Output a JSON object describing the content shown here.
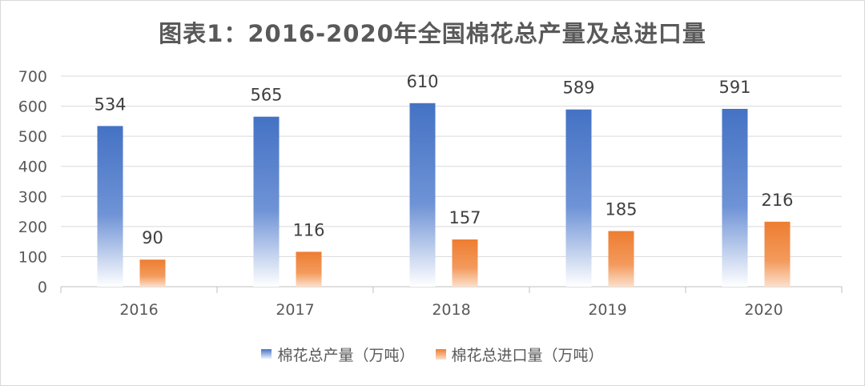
{
  "chart_data": {
    "type": "bar",
    "title": "图表1：2016-2020年全国棉花总产量及总进口量",
    "categories": [
      "2016",
      "2017",
      "2018",
      "2019",
      "2020"
    ],
    "series": [
      {
        "name": "棉花总产量（万吨）",
        "values": [
          534,
          565,
          610,
          589,
          591
        ],
        "color": "#4472c4"
      },
      {
        "name": "棉花总进口量（万吨）",
        "values": [
          90,
          116,
          157,
          185,
          216
        ],
        "color": "#ed7d31"
      }
    ],
    "y_ticks": [
      "0",
      "100",
      "200",
      "300",
      "400",
      "500",
      "600",
      "700"
    ],
    "ylim": [
      0,
      700
    ],
    "grid": true,
    "legend_position": "bottom"
  }
}
